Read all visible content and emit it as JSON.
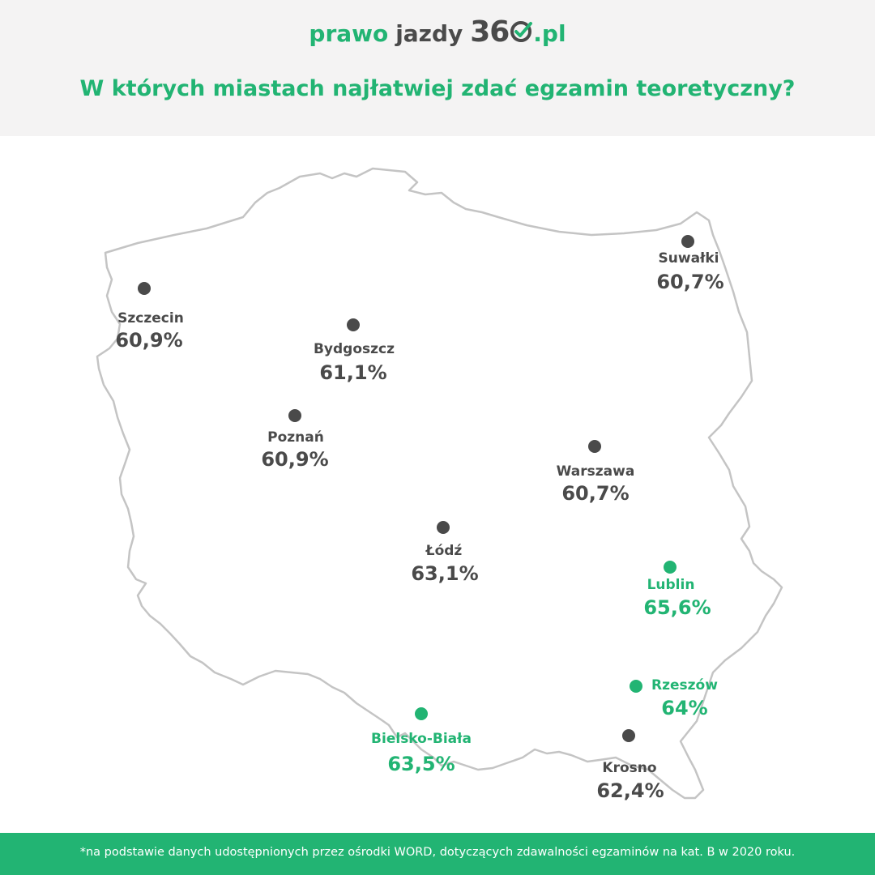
{
  "header": {
    "logo": {
      "part1": "prawo",
      "part2": "jazdy",
      "part3": "36",
      "part4": ".pl",
      "icon": "check-circle-icon"
    },
    "title": "W których miastach najłatwiej zdać egzamin teoretyczny?"
  },
  "cities": [
    {
      "name": "Suwałki",
      "value": "60,7%",
      "highlight": false
    },
    {
      "name": "Szczecin",
      "value": "60,9%",
      "highlight": false
    },
    {
      "name": "Bydgoszcz",
      "value": "61,1%",
      "highlight": false
    },
    {
      "name": "Poznań",
      "value": "60,9%",
      "highlight": false
    },
    {
      "name": "Warszawa",
      "value": "60,7%",
      "highlight": false
    },
    {
      "name": "Łódź",
      "value": "63,1%",
      "highlight": false
    },
    {
      "name": "Lublin",
      "value": "65,6%",
      "highlight": true
    },
    {
      "name": "Rzeszów",
      "value": "64%",
      "highlight": true
    },
    {
      "name": "Bielsko-Biała",
      "value": "63,5%",
      "highlight": true
    },
    {
      "name": "Krosno",
      "value": "62,4%",
      "highlight": false
    }
  ],
  "footer": {
    "note": "*na podstawie danych udostępnionych przez ośrodki WORD,  dotyczących zdawalności egzaminów na kat. B w 2020 roku."
  },
  "colors": {
    "accent": "#22b473",
    "text_dark": "#4a4a4a",
    "header_bg": "#f4f3f3",
    "map_border": "#c4c4c4"
  }
}
